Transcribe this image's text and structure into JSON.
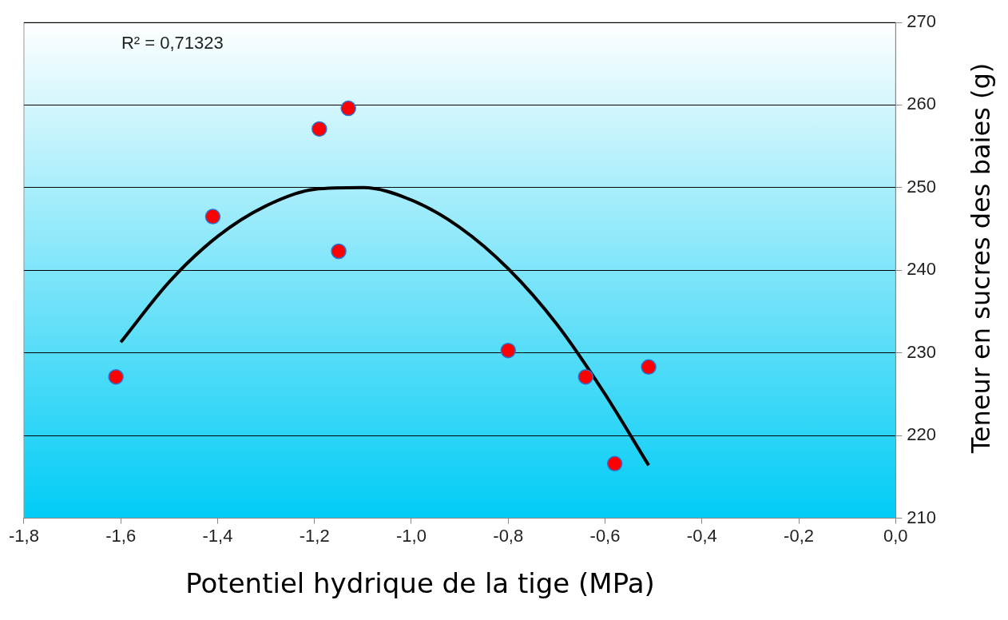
{
  "chart_data": {
    "type": "scatter",
    "xlabel": "Potentiel hydrique de la tige (MPa)",
    "ylabel": "Teneur en sucres des baies (g)",
    "annotations": [
      "R² = 0,71323"
    ],
    "xlim": [
      -1.8,
      0
    ],
    "xticks": [
      {
        "value": -1.8,
        "label": "-1,8"
      },
      {
        "value": -1.6,
        "label": "-1,6"
      },
      {
        "value": -1.4,
        "label": "-1,4"
      },
      {
        "value": -1.2,
        "label": "-1,2"
      },
      {
        "value": -1.0,
        "label": "-1,0"
      },
      {
        "value": -0.8,
        "label": "-0,8"
      },
      {
        "value": -0.6,
        "label": "-0,6"
      },
      {
        "value": -0.4,
        "label": "-0,4"
      },
      {
        "value": -0.2,
        "label": "-0,2"
      },
      {
        "value": 0,
        "label": "0,0"
      }
    ],
    "ylim": [
      210,
      270
    ],
    "yticks": [
      210,
      220,
      230,
      240,
      250,
      260,
      270
    ],
    "grid": "y",
    "legend": false,
    "series": [
      {
        "color": "#ff0000",
        "marker": "circle",
        "x": [
          -1.61,
          -1.41,
          -1.19,
          -1.13,
          -1.15,
          -0.8,
          -0.64,
          -0.58,
          -0.51
        ],
        "values": [
          227.1,
          246.5,
          257.1,
          259.6,
          242.3,
          230.3,
          227.1,
          216.6,
          228.3
        ]
      },
      {
        "type": "line",
        "color": "#000000",
        "marker": "none",
        "line_style": "solid",
        "x": [
          -1.6,
          -1.5,
          -1.4,
          -1.3,
          -1.2,
          -1.1,
          -1.0,
          -0.9,
          -0.8,
          -0.7,
          -0.6,
          -0.51
        ],
        "values": [
          231.3,
          238.6,
          244.1,
          247.8,
          249.8,
          250.0,
          248.5,
          245.2,
          240.2,
          233.5,
          225.0,
          216.4
        ]
      }
    ]
  }
}
